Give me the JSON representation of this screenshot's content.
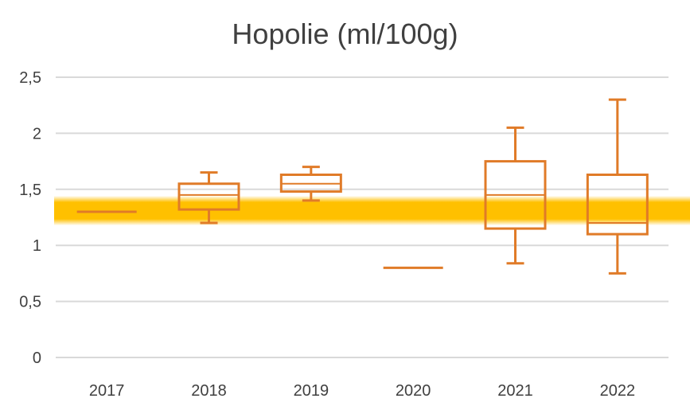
{
  "chart_data": {
    "type": "boxplot",
    "title": "Hopolie (ml/100g)",
    "xlabel": "",
    "ylabel": "",
    "ylim": [
      0,
      2.5
    ],
    "y_ticks": [
      "0",
      "0,5",
      "1",
      "1,5",
      "2",
      "2,5"
    ],
    "y_tick_values": [
      0,
      0.5,
      1,
      1.5,
      2,
      2.5
    ],
    "grid": true,
    "categories": [
      "2017",
      "2018",
      "2019",
      "2020",
      "2021",
      "2022"
    ],
    "boxes": [
      {
        "category": "2017",
        "min": 1.3,
        "q1": 1.3,
        "median": 1.3,
        "q3": 1.3,
        "max": 1.3
      },
      {
        "category": "2018",
        "min": 1.2,
        "q1": 1.32,
        "median": 1.45,
        "q3": 1.55,
        "max": 1.65
      },
      {
        "category": "2019",
        "min": 1.4,
        "q1": 1.48,
        "median": 1.55,
        "q3": 1.63,
        "max": 1.7
      },
      {
        "category": "2020",
        "min": 0.8,
        "q1": 0.8,
        "median": 0.8,
        "q3": 0.8,
        "max": 0.8
      },
      {
        "category": "2021",
        "min": 0.84,
        "q1": 1.15,
        "median": 1.45,
        "q3": 1.75,
        "max": 2.05
      },
      {
        "category": "2022",
        "min": 0.75,
        "q1": 1.1,
        "median": 1.2,
        "q3": 1.63,
        "max": 2.3
      }
    ],
    "reference_band": {
      "low": 1.22,
      "high": 1.4
    },
    "colors": {
      "box": "#E07B28",
      "band": "#FFC000",
      "grid": "#d9d9d9",
      "text": "#404040"
    }
  }
}
